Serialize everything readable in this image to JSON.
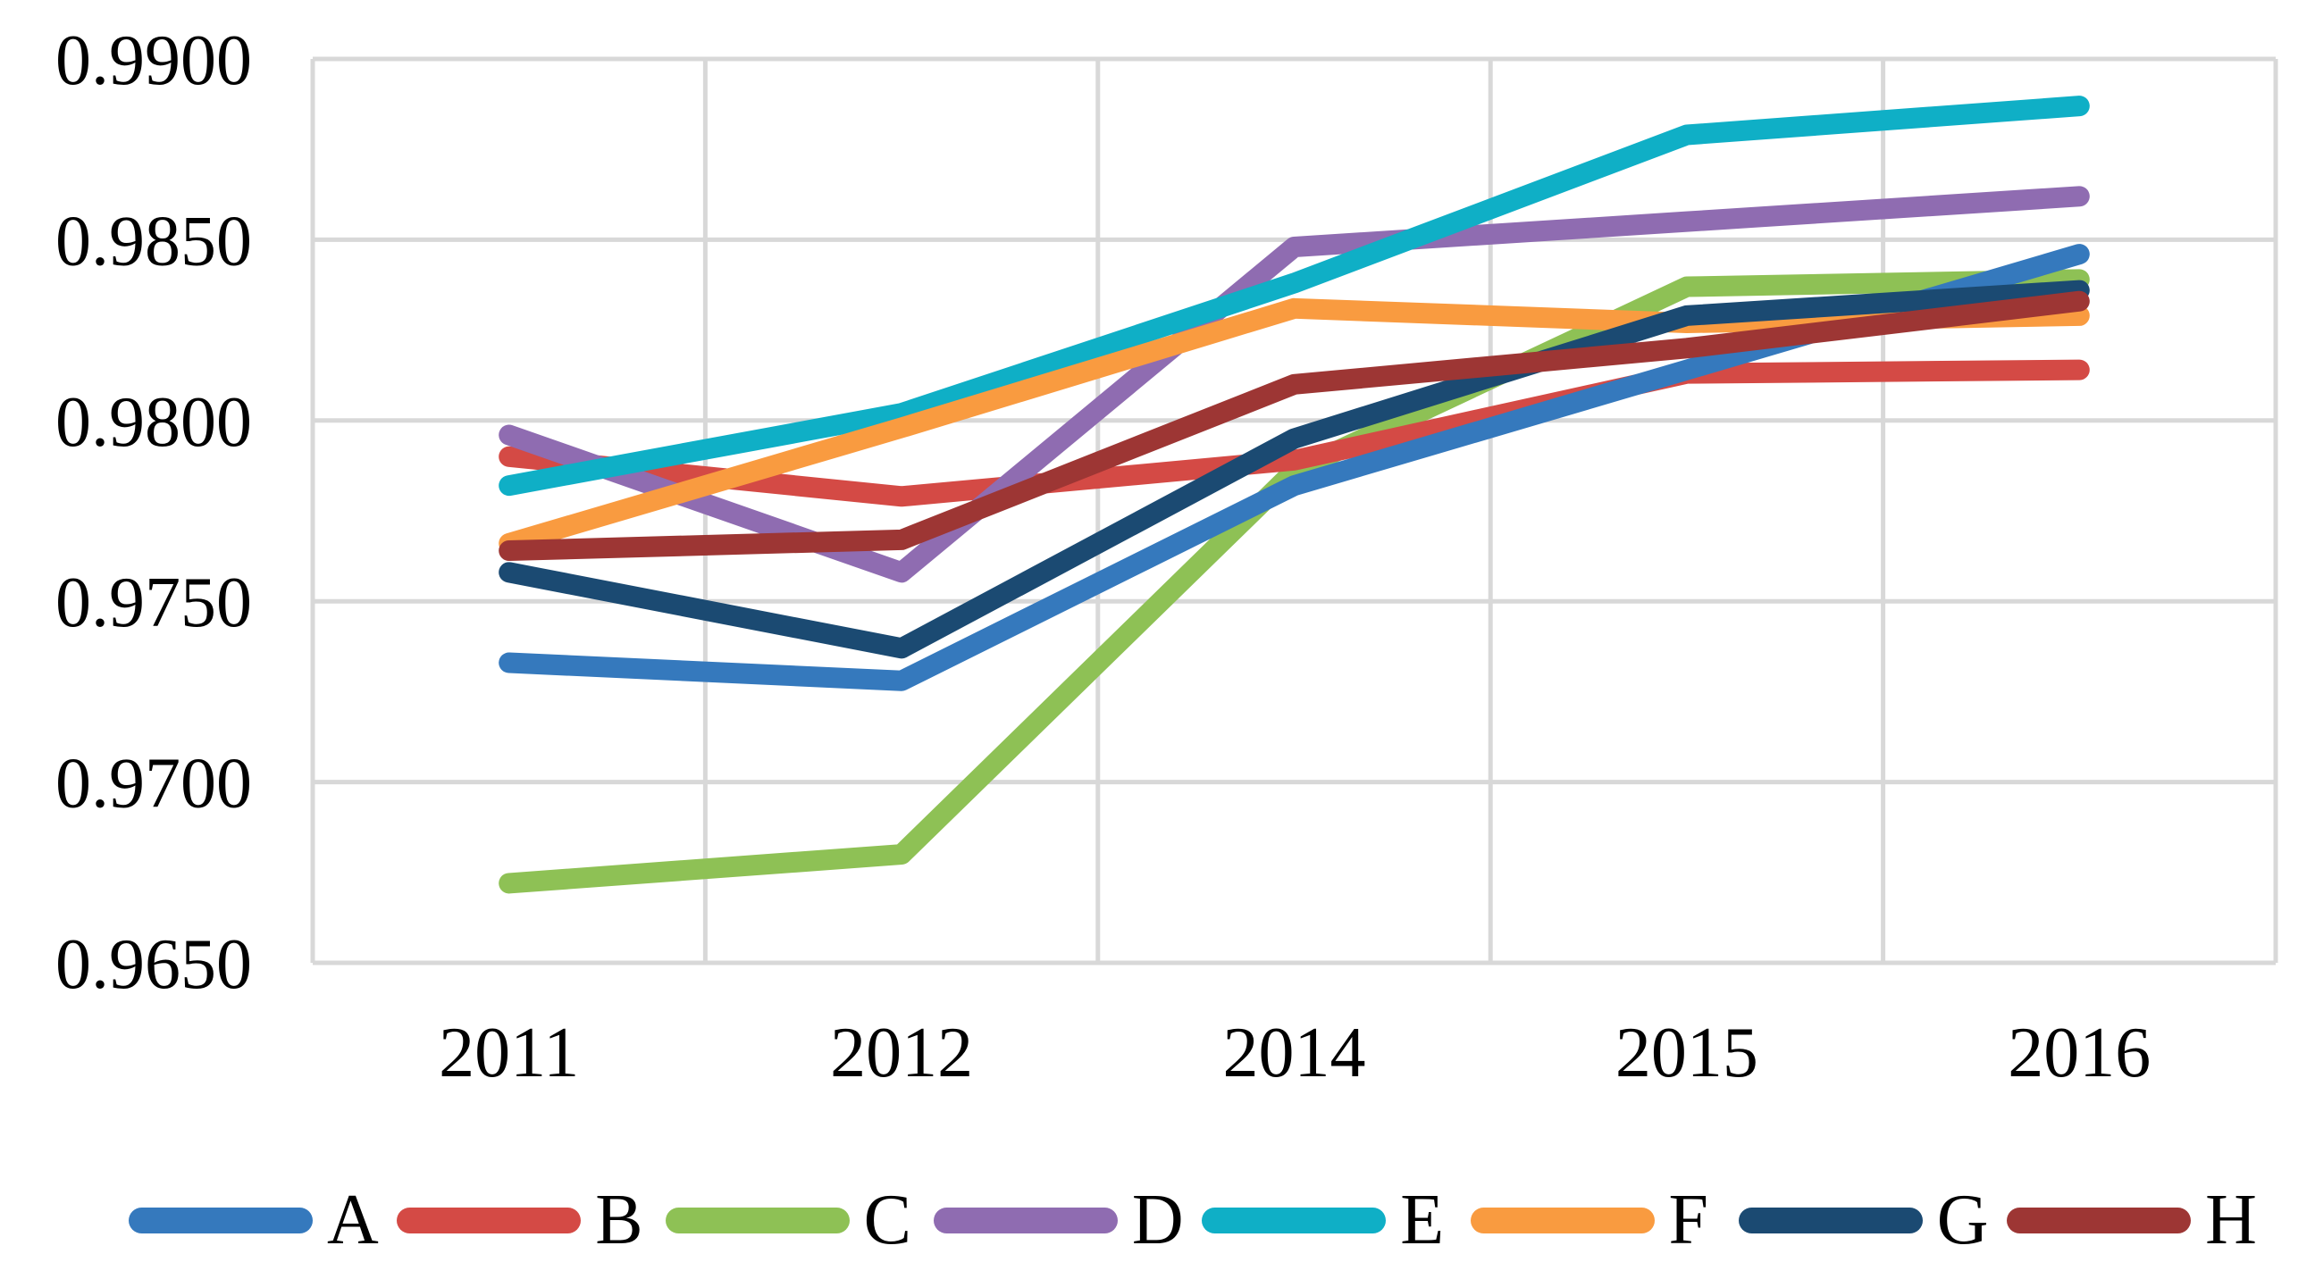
{
  "chart_data": {
    "type": "line",
    "title": "",
    "x_categories": [
      "2011",
      "2012",
      "2014",
      "2015",
      "2016"
    ],
    "y_axis": {
      "min": 0.965,
      "max": 0.99,
      "step": 0.005,
      "tick_labels": [
        "0.9900",
        "0.9850",
        "0.9800",
        "0.9750",
        "0.9700",
        "0.9650"
      ]
    },
    "grid": true,
    "legend_position": "bottom",
    "series": [
      {
        "name": "A",
        "color": "#3579BD",
        "values": [
          0.9733,
          0.9728,
          0.9782,
          0.9814,
          0.9846
        ]
      },
      {
        "name": "B",
        "color": "#D44A45",
        "values": [
          0.979,
          0.9779,
          0.9789,
          0.9813,
          0.9814
        ]
      },
      {
        "name": "C",
        "color": "#8EC155",
        "values": [
          0.9672,
          0.968,
          0.9786,
          0.9837,
          0.9839
        ]
      },
      {
        "name": "D",
        "color": "#8F6CB1",
        "values": [
          0.9796,
          0.9758,
          0.9848,
          0.9855,
          0.9862
        ]
      },
      {
        "name": "E",
        "color": "#0FAFC6",
        "values": [
          0.9782,
          0.9802,
          0.9838,
          0.9879,
          0.9887
        ]
      },
      {
        "name": "F",
        "color": "#F99B40",
        "values": [
          0.9766,
          0.9798,
          0.9831,
          0.9827,
          0.9829
        ]
      },
      {
        "name": "G",
        "color": "#1B4A72",
        "values": [
          0.9758,
          0.9737,
          0.9795,
          0.9829,
          0.9836
        ]
      },
      {
        "name": "H",
        "color": "#9D3634",
        "values": [
          0.9764,
          0.9767,
          0.981,
          0.982,
          0.9833
        ]
      }
    ],
    "draw_order": [
      "C",
      "B",
      "D",
      "A",
      "E",
      "F",
      "G",
      "H"
    ],
    "gridline_color": "#D8D8D8",
    "line_width": 23
  }
}
